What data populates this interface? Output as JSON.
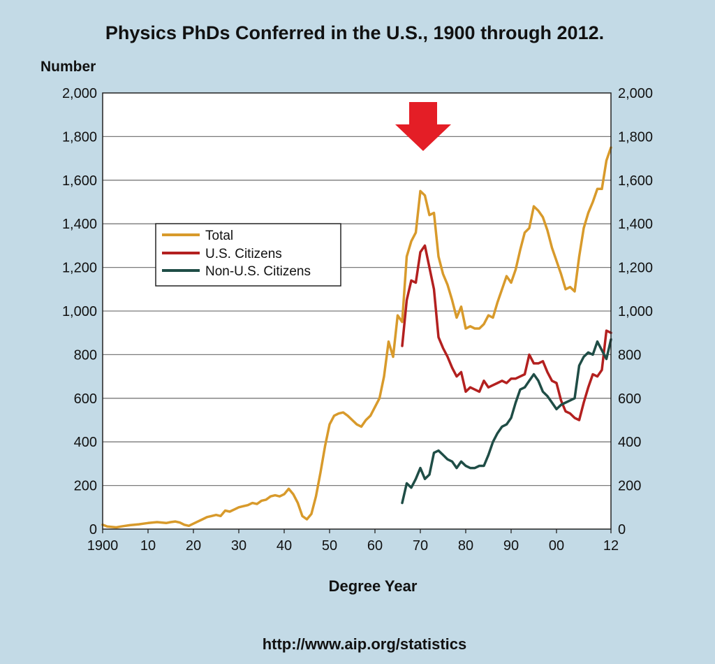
{
  "chart_data": {
    "type": "line",
    "title": "Physics PhDs Conferred in the U.S., 1900 through 2012.",
    "ylabel": "Number",
    "xlabel": "Degree Year",
    "source": "http://www.aip.org/statistics",
    "ylim": [
      0,
      2000
    ],
    "xlim": [
      1900,
      2012
    ],
    "y_ticks": [
      0,
      200,
      400,
      600,
      800,
      1000,
      1200,
      1400,
      1600,
      1800,
      2000
    ],
    "y_tick_labels": [
      "0",
      "200",
      "400",
      "600",
      "800",
      "1,000",
      "1,200",
      "1,400",
      "1,600",
      "1,800",
      "2,000"
    ],
    "x_ticks": [
      1900,
      1910,
      1920,
      1930,
      1940,
      1950,
      1960,
      1970,
      1980,
      1990,
      2000,
      2012
    ],
    "x_tick_labels": [
      "1900",
      "10",
      "20",
      "30",
      "40",
      "50",
      "60",
      "70",
      "80",
      "90",
      "00",
      "12"
    ],
    "grid": true,
    "legend_position": "left-middle",
    "annotation": {
      "type": "arrow",
      "direction": "down",
      "x": 1970,
      "color": "#e41e26"
    },
    "series": [
      {
        "name": "Total",
        "color": "#d89a2b",
        "points": [
          [
            1900,
            20
          ],
          [
            1901,
            12
          ],
          [
            1902,
            10
          ],
          [
            1903,
            8
          ],
          [
            1904,
            12
          ],
          [
            1905,
            15
          ],
          [
            1906,
            18
          ],
          [
            1907,
            20
          ],
          [
            1908,
            22
          ],
          [
            1909,
            25
          ],
          [
            1910,
            28
          ],
          [
            1911,
            30
          ],
          [
            1912,
            32
          ],
          [
            1913,
            30
          ],
          [
            1914,
            28
          ],
          [
            1915,
            32
          ],
          [
            1916,
            35
          ],
          [
            1917,
            30
          ],
          [
            1918,
            20
          ],
          [
            1919,
            15
          ],
          [
            1920,
            25
          ],
          [
            1921,
            35
          ],
          [
            1922,
            45
          ],
          [
            1923,
            55
          ],
          [
            1924,
            60
          ],
          [
            1925,
            65
          ],
          [
            1926,
            60
          ],
          [
            1927,
            85
          ],
          [
            1928,
            80
          ],
          [
            1929,
            90
          ],
          [
            1930,
            100
          ],
          [
            1931,
            105
          ],
          [
            1932,
            110
          ],
          [
            1933,
            120
          ],
          [
            1934,
            115
          ],
          [
            1935,
            130
          ],
          [
            1936,
            135
          ],
          [
            1937,
            150
          ],
          [
            1938,
            155
          ],
          [
            1939,
            150
          ],
          [
            1940,
            160
          ],
          [
            1941,
            185
          ],
          [
            1942,
            160
          ],
          [
            1943,
            120
          ],
          [
            1944,
            60
          ],
          [
            1945,
            45
          ],
          [
            1946,
            70
          ],
          [
            1947,
            150
          ],
          [
            1948,
            260
          ],
          [
            1949,
            380
          ],
          [
            1950,
            480
          ],
          [
            1951,
            520
          ],
          [
            1952,
            530
          ],
          [
            1953,
            535
          ],
          [
            1954,
            520
          ],
          [
            1955,
            500
          ],
          [
            1956,
            480
          ],
          [
            1957,
            470
          ],
          [
            1958,
            500
          ],
          [
            1959,
            520
          ],
          [
            1960,
            560
          ],
          [
            1961,
            600
          ],
          [
            1962,
            700
          ],
          [
            1963,
            860
          ],
          [
            1964,
            790
          ],
          [
            1965,
            980
          ],
          [
            1966,
            950
          ],
          [
            1967,
            1250
          ],
          [
            1968,
            1320
          ],
          [
            1969,
            1360
          ],
          [
            1970,
            1550
          ],
          [
            1971,
            1530
          ],
          [
            1972,
            1440
          ],
          [
            1973,
            1450
          ],
          [
            1974,
            1250
          ],
          [
            1975,
            1170
          ],
          [
            1976,
            1120
          ],
          [
            1977,
            1050
          ],
          [
            1978,
            970
          ],
          [
            1979,
            1020
          ],
          [
            1980,
            920
          ],
          [
            1981,
            930
          ],
          [
            1982,
            920
          ],
          [
            1983,
            920
          ],
          [
            1984,
            940
          ],
          [
            1985,
            980
          ],
          [
            1986,
            970
          ],
          [
            1987,
            1040
          ],
          [
            1988,
            1100
          ],
          [
            1989,
            1160
          ],
          [
            1990,
            1130
          ],
          [
            1991,
            1190
          ],
          [
            1992,
            1280
          ],
          [
            1993,
            1360
          ],
          [
            1994,
            1380
          ],
          [
            1995,
            1480
          ],
          [
            1996,
            1460
          ],
          [
            1997,
            1430
          ],
          [
            1998,
            1370
          ],
          [
            1999,
            1290
          ],
          [
            2000,
            1230
          ],
          [
            2001,
            1170
          ],
          [
            2002,
            1100
          ],
          [
            2003,
            1110
          ],
          [
            2004,
            1090
          ],
          [
            2005,
            1250
          ],
          [
            2006,
            1380
          ],
          [
            2007,
            1450
          ],
          [
            2008,
            1500
          ],
          [
            2009,
            1560
          ],
          [
            2010,
            1560
          ],
          [
            2011,
            1690
          ],
          [
            2012,
            1750
          ]
        ]
      },
      {
        "name": "U.S. Citizens",
        "color": "#b3201f",
        "points": [
          [
            1966,
            840
          ],
          [
            1967,
            1050
          ],
          [
            1968,
            1140
          ],
          [
            1969,
            1130
          ],
          [
            1970,
            1270
          ],
          [
            1971,
            1300
          ],
          [
            1972,
            1200
          ],
          [
            1973,
            1100
          ],
          [
            1974,
            880
          ],
          [
            1975,
            830
          ],
          [
            1976,
            790
          ],
          [
            1977,
            740
          ],
          [
            1978,
            700
          ],
          [
            1979,
            720
          ],
          [
            1980,
            630
          ],
          [
            1981,
            650
          ],
          [
            1982,
            640
          ],
          [
            1983,
            630
          ],
          [
            1984,
            680
          ],
          [
            1985,
            650
          ],
          [
            1986,
            660
          ],
          [
            1987,
            670
          ],
          [
            1988,
            680
          ],
          [
            1989,
            670
          ],
          [
            1990,
            690
          ],
          [
            1991,
            690
          ],
          [
            1992,
            700
          ],
          [
            1993,
            710
          ],
          [
            1994,
            800
          ],
          [
            1995,
            760
          ],
          [
            1996,
            760
          ],
          [
            1997,
            770
          ],
          [
            1998,
            720
          ],
          [
            1999,
            680
          ],
          [
            2000,
            670
          ],
          [
            2001,
            590
          ],
          [
            2002,
            540
          ],
          [
            2003,
            530
          ],
          [
            2004,
            510
          ],
          [
            2005,
            500
          ],
          [
            2006,
            580
          ],
          [
            2007,
            650
          ],
          [
            2008,
            710
          ],
          [
            2009,
            700
          ],
          [
            2010,
            730
          ],
          [
            2011,
            910
          ],
          [
            2012,
            900
          ]
        ]
      },
      {
        "name": "Non-U.S. Citizens",
        "color": "#1f4d46",
        "points": [
          [
            1966,
            120
          ],
          [
            1967,
            210
          ],
          [
            1968,
            190
          ],
          [
            1969,
            230
          ],
          [
            1970,
            280
          ],
          [
            1971,
            230
          ],
          [
            1972,
            250
          ],
          [
            1973,
            350
          ],
          [
            1974,
            360
          ],
          [
            1975,
            340
          ],
          [
            1976,
            320
          ],
          [
            1977,
            310
          ],
          [
            1978,
            280
          ],
          [
            1979,
            310
          ],
          [
            1980,
            290
          ],
          [
            1981,
            280
          ],
          [
            1982,
            280
          ],
          [
            1983,
            290
          ],
          [
            1984,
            290
          ],
          [
            1985,
            340
          ],
          [
            1986,
            400
          ],
          [
            1987,
            440
          ],
          [
            1988,
            470
          ],
          [
            1989,
            480
          ],
          [
            1990,
            510
          ],
          [
            1991,
            580
          ],
          [
            1992,
            640
          ],
          [
            1993,
            650
          ],
          [
            1994,
            680
          ],
          [
            1995,
            710
          ],
          [
            1996,
            680
          ],
          [
            1997,
            630
          ],
          [
            1998,
            610
          ],
          [
            1999,
            580
          ],
          [
            2000,
            550
          ],
          [
            2001,
            570
          ],
          [
            2002,
            580
          ],
          [
            2003,
            590
          ],
          [
            2004,
            600
          ],
          [
            2005,
            750
          ],
          [
            2006,
            790
          ],
          [
            2007,
            810
          ],
          [
            2008,
            800
          ],
          [
            2009,
            860
          ],
          [
            2010,
            820
          ],
          [
            2011,
            780
          ],
          [
            2012,
            870
          ]
        ]
      }
    ]
  }
}
